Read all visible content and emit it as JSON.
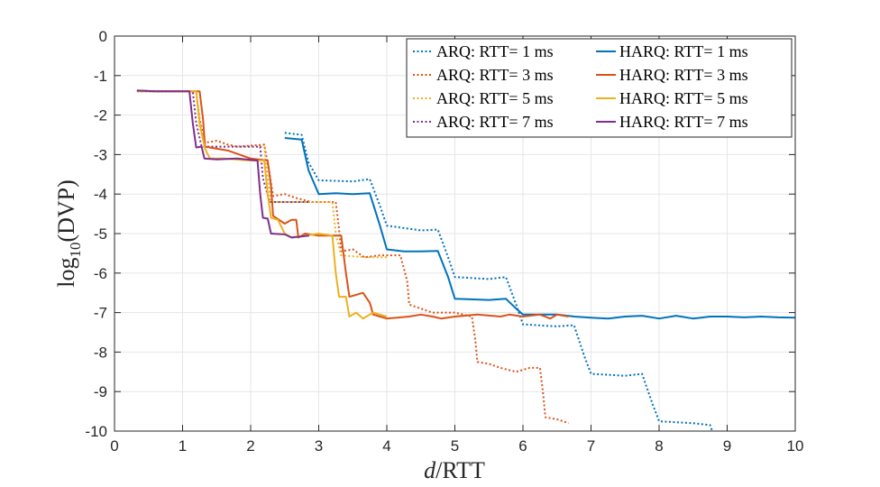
{
  "chart_data": {
    "type": "line",
    "title": "",
    "xlabel": "d/RTT",
    "ylabel": "log10(DVP)",
    "xlim": [
      0,
      10
    ],
    "ylim": [
      -10,
      0
    ],
    "grid": true,
    "legend_position": "top-right",
    "xticks": [
      "0",
      "1",
      "2",
      "3",
      "4",
      "5",
      "6",
      "7",
      "8",
      "9",
      "10"
    ],
    "yticks": [
      "0",
      "-1",
      "-2",
      "-3",
      "-4",
      "-5",
      "-6",
      "-7",
      "-8",
      "-9",
      "-10"
    ],
    "series": [
      {
        "name": "ARQ: RTT= 1 ms",
        "style": "dotted",
        "color": "#0072BD",
        "points": [
          [
            2.5,
            -2.45
          ],
          [
            2.75,
            -2.5
          ],
          [
            2.85,
            -3.2
          ],
          [
            3.0,
            -3.65
          ],
          [
            3.5,
            -3.68
          ],
          [
            3.75,
            -3.62
          ],
          [
            3.9,
            -4.3
          ],
          [
            4.0,
            -4.8
          ],
          [
            4.5,
            -4.92
          ],
          [
            4.75,
            -4.9
          ],
          [
            4.9,
            -5.6
          ],
          [
            5.0,
            -6.1
          ],
          [
            5.5,
            -6.15
          ],
          [
            5.75,
            -6.1
          ],
          [
            5.9,
            -6.8
          ],
          [
            6.0,
            -7.3
          ],
          [
            6.5,
            -7.35
          ],
          [
            6.75,
            -7.32
          ],
          [
            6.9,
            -8.1
          ],
          [
            7.0,
            -8.55
          ],
          [
            7.5,
            -8.6
          ],
          [
            7.75,
            -8.55
          ],
          [
            7.9,
            -9.3
          ],
          [
            8.0,
            -9.75
          ],
          [
            8.5,
            -9.8
          ],
          [
            8.75,
            -9.85
          ],
          [
            8.78,
            -10
          ]
        ]
      },
      {
        "name": "ARQ: RTT= 3 ms",
        "style": "dotted",
        "color": "#D95319",
        "points": [
          [
            0.33,
            -1.38
          ],
          [
            0.6,
            -1.4
          ],
          [
            0.9,
            -1.4
          ],
          [
            1.2,
            -1.4
          ],
          [
            1.25,
            -2.1
          ],
          [
            1.33,
            -2.7
          ],
          [
            1.5,
            -2.65
          ],
          [
            1.67,
            -2.75
          ],
          [
            1.8,
            -2.8
          ],
          [
            2.2,
            -2.75
          ],
          [
            2.28,
            -3.5
          ],
          [
            2.33,
            -4.05
          ],
          [
            2.5,
            -4.0
          ],
          [
            2.67,
            -4.1
          ],
          [
            2.9,
            -4.2
          ],
          [
            3.25,
            -4.2
          ],
          [
            3.3,
            -4.9
          ],
          [
            3.33,
            -5.45
          ],
          [
            3.5,
            -5.4
          ],
          [
            3.67,
            -5.6
          ],
          [
            3.9,
            -5.55
          ],
          [
            4.2,
            -5.55
          ],
          [
            4.3,
            -6.2
          ],
          [
            4.33,
            -6.8
          ],
          [
            4.5,
            -6.9
          ],
          [
            4.67,
            -7.0
          ],
          [
            5.0,
            -7.0
          ],
          [
            5.25,
            -7.1
          ],
          [
            5.3,
            -7.7
          ],
          [
            5.33,
            -8.25
          ],
          [
            5.5,
            -8.3
          ],
          [
            5.67,
            -8.4
          ],
          [
            5.9,
            -8.5
          ],
          [
            6.1,
            -8.4
          ],
          [
            6.25,
            -8.4
          ],
          [
            6.3,
            -9.1
          ],
          [
            6.33,
            -9.65
          ],
          [
            6.5,
            -9.7
          ],
          [
            6.67,
            -9.8
          ]
        ]
      },
      {
        "name": "ARQ: RTT= 5 ms",
        "style": "dotted",
        "color": "#EDB120",
        "points": [
          [
            0.33,
            -1.4
          ],
          [
            0.6,
            -1.4
          ],
          [
            1.0,
            -1.4
          ],
          [
            1.2,
            -1.4
          ],
          [
            1.25,
            -2.3
          ],
          [
            1.33,
            -2.8
          ],
          [
            1.6,
            -2.8
          ],
          [
            2.0,
            -2.8
          ],
          [
            2.2,
            -2.8
          ],
          [
            2.25,
            -3.6
          ],
          [
            2.3,
            -4.2
          ],
          [
            2.6,
            -4.2
          ],
          [
            3.0,
            -4.2
          ],
          [
            3.2,
            -4.2
          ],
          [
            3.25,
            -5.0
          ],
          [
            3.33,
            -5.55
          ],
          [
            3.7,
            -5.6
          ],
          [
            4.0,
            -5.6
          ]
        ]
      },
      {
        "name": "ARQ: RTT= 7 ms",
        "style": "dotted",
        "color": "#7E2F8E",
        "points": [
          [
            0.33,
            -1.4
          ],
          [
            0.6,
            -1.4
          ],
          [
            1.0,
            -1.4
          ],
          [
            1.15,
            -1.4
          ],
          [
            1.2,
            -2.2
          ],
          [
            1.28,
            -2.8
          ],
          [
            1.6,
            -2.8
          ],
          [
            2.0,
            -2.8
          ],
          [
            2.14,
            -2.8
          ],
          [
            2.18,
            -3.6
          ],
          [
            2.28,
            -4.2
          ],
          [
            2.6,
            -4.2
          ],
          [
            2.86,
            -4.2
          ]
        ]
      },
      {
        "name": "HARQ: RTT= 1 ms",
        "style": "solid",
        "color": "#0072BD",
        "points": [
          [
            2.5,
            -2.58
          ],
          [
            2.75,
            -2.62
          ],
          [
            2.85,
            -3.4
          ],
          [
            3.0,
            -4.0
          ],
          [
            3.25,
            -3.98
          ],
          [
            3.5,
            -4.0
          ],
          [
            3.75,
            -3.98
          ],
          [
            3.9,
            -4.8
          ],
          [
            4.0,
            -5.4
          ],
          [
            4.25,
            -5.45
          ],
          [
            4.5,
            -5.45
          ],
          [
            4.75,
            -5.44
          ],
          [
            4.9,
            -6.1
          ],
          [
            5.0,
            -6.65
          ],
          [
            5.5,
            -6.68
          ],
          [
            5.75,
            -6.65
          ],
          [
            5.9,
            -6.9
          ],
          [
            6.0,
            -7.05
          ],
          [
            6.25,
            -7.05
          ],
          [
            6.5,
            -7.05
          ],
          [
            6.75,
            -7.1
          ],
          [
            7.0,
            -7.13
          ],
          [
            7.25,
            -7.15
          ],
          [
            7.5,
            -7.1
          ],
          [
            7.75,
            -7.08
          ],
          [
            8.0,
            -7.15
          ],
          [
            8.25,
            -7.08
          ],
          [
            8.5,
            -7.15
          ],
          [
            8.75,
            -7.1
          ],
          [
            9.0,
            -7.1
          ],
          [
            9.25,
            -7.12
          ],
          [
            9.5,
            -7.1
          ],
          [
            9.75,
            -7.12
          ],
          [
            10.0,
            -7.13
          ]
        ]
      },
      {
        "name": "HARQ: RTT= 3 ms",
        "style": "solid",
        "color": "#D95319",
        "points": [
          [
            0.33,
            -1.38
          ],
          [
            0.6,
            -1.4
          ],
          [
            1.0,
            -1.4
          ],
          [
            1.25,
            -1.4
          ],
          [
            1.3,
            -2.1
          ],
          [
            1.33,
            -2.8
          ],
          [
            1.67,
            -2.9
          ],
          [
            2.0,
            -3.1
          ],
          [
            2.25,
            -3.15
          ],
          [
            2.3,
            -3.8
          ],
          [
            2.33,
            -4.55
          ],
          [
            2.5,
            -4.75
          ],
          [
            2.6,
            -4.65
          ],
          [
            2.67,
            -4.65
          ],
          [
            2.7,
            -5.1
          ],
          [
            2.8,
            -5.0
          ],
          [
            3.0,
            -5.05
          ],
          [
            3.33,
            -5.05
          ],
          [
            3.4,
            -6.0
          ],
          [
            3.45,
            -6.6
          ],
          [
            3.55,
            -6.55
          ],
          [
            3.65,
            -6.5
          ],
          [
            3.75,
            -6.75
          ],
          [
            3.8,
            -7.05
          ],
          [
            3.9,
            -7.1
          ],
          [
            4.0,
            -7.15
          ],
          [
            4.33,
            -7.1
          ],
          [
            4.5,
            -7.05
          ],
          [
            4.67,
            -7.1
          ],
          [
            4.8,
            -7.15
          ],
          [
            5.0,
            -7.1
          ],
          [
            5.33,
            -7.05
          ],
          [
            5.67,
            -7.1
          ],
          [
            5.8,
            -7.05
          ],
          [
            6.0,
            -7.1
          ],
          [
            6.25,
            -7.05
          ],
          [
            6.4,
            -7.15
          ],
          [
            6.5,
            -7.05
          ],
          [
            6.67,
            -7.1
          ]
        ]
      },
      {
        "name": "HARQ: RTT= 5 ms",
        "style": "solid",
        "color": "#EDB120",
        "points": [
          [
            0.33,
            -1.4
          ],
          [
            0.6,
            -1.4
          ],
          [
            1.0,
            -1.4
          ],
          [
            1.2,
            -1.4
          ],
          [
            1.25,
            -2.2
          ],
          [
            1.33,
            -2.85
          ],
          [
            1.4,
            -3.1
          ],
          [
            1.6,
            -3.1
          ],
          [
            2.0,
            -3.15
          ],
          [
            2.2,
            -3.15
          ],
          [
            2.25,
            -4.0
          ],
          [
            2.3,
            -4.6
          ],
          [
            2.4,
            -4.65
          ],
          [
            2.5,
            -5.0
          ],
          [
            2.6,
            -5.1
          ],
          [
            2.8,
            -5.05
          ],
          [
            3.0,
            -5.0
          ],
          [
            3.2,
            -5.05
          ],
          [
            3.25,
            -6.0
          ],
          [
            3.3,
            -6.6
          ],
          [
            3.4,
            -6.6
          ],
          [
            3.45,
            -7.1
          ],
          [
            3.55,
            -7.0
          ],
          [
            3.65,
            -7.15
          ],
          [
            3.8,
            -7.0
          ],
          [
            4.0,
            -7.1
          ]
        ]
      },
      {
        "name": "HARQ: RTT= 7 ms",
        "style": "solid",
        "color": "#7E2F8E",
        "points": [
          [
            0.33,
            -1.38
          ],
          [
            0.6,
            -1.4
          ],
          [
            1.0,
            -1.4
          ],
          [
            1.1,
            -1.4
          ],
          [
            1.15,
            -2.2
          ],
          [
            1.2,
            -2.82
          ],
          [
            1.28,
            -2.8
          ],
          [
            1.32,
            -3.1
          ],
          [
            1.5,
            -3.12
          ],
          [
            1.8,
            -3.1
          ],
          [
            2.1,
            -3.15
          ],
          [
            2.14,
            -4.0
          ],
          [
            2.18,
            -4.6
          ],
          [
            2.25,
            -4.62
          ],
          [
            2.3,
            -5.0
          ],
          [
            2.5,
            -5.02
          ],
          [
            2.6,
            -5.1
          ],
          [
            2.86,
            -5.05
          ]
        ]
      }
    ]
  }
}
